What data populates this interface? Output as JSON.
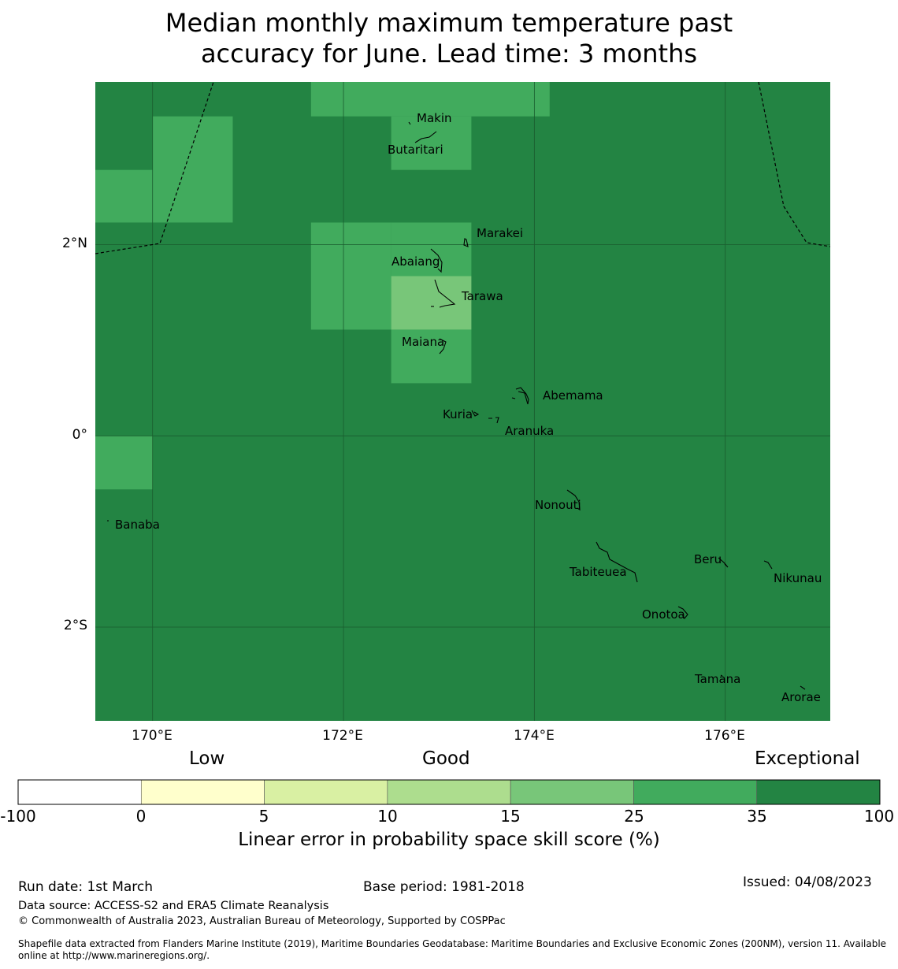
{
  "title_line1": "Median monthly maximum temperature past",
  "title_line2": "accuracy for June. Lead time: 3 months",
  "map": {
    "lon_range": [
      169.4,
      177.1
    ],
    "lat_range": [
      -2.98,
      3.7
    ],
    "background_color": "#238443",
    "grid_cells": [
      {
        "lon": [
          171.66,
          174.16
        ],
        "lat": [
          3.34,
          3.7
        ],
        "color": "#41ab5d",
        "category": "25-35"
      },
      {
        "lon": [
          170.0,
          170.84
        ],
        "lat": [
          2.23,
          3.34
        ],
        "color": "#41ab5d",
        "category": "25-35"
      },
      {
        "lon": [
          169.4,
          170.0
        ],
        "lat": [
          2.23,
          2.78
        ],
        "color": "#41ab5d",
        "category": "25-35"
      },
      {
        "lon": [
          172.5,
          173.34
        ],
        "lat": [
          2.78,
          3.34
        ],
        "color": "#41ab5d",
        "category": "25-35"
      },
      {
        "lon": [
          171.66,
          172.5
        ],
        "lat": [
          1.11,
          2.23
        ],
        "color": "#41ab5d",
        "category": "25-35"
      },
      {
        "lon": [
          172.5,
          173.34
        ],
        "lat": [
          1.67,
          2.23
        ],
        "color": "#41ab5d",
        "category": "25-35"
      },
      {
        "lon": [
          172.5,
          173.34
        ],
        "lat": [
          1.11,
          1.67
        ],
        "color": "#78c679",
        "category": "15-25"
      },
      {
        "lon": [
          172.5,
          173.34
        ],
        "lat": [
          0.55,
          1.11
        ],
        "color": "#41ab5d",
        "category": "25-35"
      },
      {
        "lon": [
          169.4,
          170.0
        ],
        "lat": [
          -0.56,
          0.0
        ],
        "color": "#41ab5d",
        "category": "25-35"
      }
    ],
    "lat_ticks": [
      {
        "lat": 2,
        "label": "2°N"
      },
      {
        "lat": 0,
        "label": "0°"
      },
      {
        "lat": -2,
        "label": "2°S"
      }
    ],
    "lon_ticks": [
      {
        "lon": 170,
        "label": "170°E"
      },
      {
        "lon": 172,
        "label": "172°E"
      },
      {
        "lon": 174,
        "label": "174°E"
      },
      {
        "lon": 176,
        "label": "176°E"
      }
    ],
    "islands": [
      {
        "name": "Makin",
        "lon": 172.98,
        "lat": 3.33
      },
      {
        "name": "Butaritari",
        "lon": 172.8,
        "lat": 3.07
      },
      {
        "name": "Marakei",
        "lon": 173.3,
        "lat": 2.01
      },
      {
        "name": "Abaiang",
        "lon": 173.0,
        "lat": 1.85
      },
      {
        "name": "Tarawa",
        "lon": 173.06,
        "lat": 1.42
      },
      {
        "name": "Maiana",
        "lon": 173.02,
        "lat": 0.93
      },
      {
        "name": "Abemama",
        "lon": 173.87,
        "lat": 0.4
      },
      {
        "name": "Kuria",
        "lon": 173.41,
        "lat": 0.23
      },
      {
        "name": "Aranuka",
        "lon": 173.63,
        "lat": 0.17
      },
      {
        "name": "Nonouti",
        "lon": 174.42,
        "lat": -0.63
      },
      {
        "name": "Banaba",
        "lon": 169.53,
        "lat": -0.87
      },
      {
        "name": "Tabiteuea",
        "lon": 174.85,
        "lat": -1.38
      },
      {
        "name": "Beru",
        "lon": 176.0,
        "lat": -1.33
      },
      {
        "name": "Nikunau",
        "lon": 176.45,
        "lat": -1.37
      },
      {
        "name": "Onotoa",
        "lon": 175.58,
        "lat": -1.82
      },
      {
        "name": "Tamana",
        "lon": 175.98,
        "lat": -2.5
      },
      {
        "name": "Arorae",
        "lon": 176.82,
        "lat": -2.65
      }
    ]
  },
  "colorbar": {
    "category_labels": [
      "Low",
      "Good",
      "Exceptional"
    ],
    "bins": [
      {
        "from": -100,
        "to": 0,
        "color": "#ffffff"
      },
      {
        "from": 0,
        "to": 5,
        "color": "#ffffcc"
      },
      {
        "from": 5,
        "to": 10,
        "color": "#d9f0a3"
      },
      {
        "from": 10,
        "to": 15,
        "color": "#addd8e"
      },
      {
        "from": 15,
        "to": 25,
        "color": "#78c679"
      },
      {
        "from": 25,
        "to": 35,
        "color": "#41ab5d"
      },
      {
        "from": 35,
        "to": 100,
        "color": "#238443"
      }
    ],
    "tick_labels": [
      "-100",
      "0",
      "5",
      "10",
      "15",
      "25",
      "35",
      "100"
    ],
    "title": "Linear error in probability space skill score (%)"
  },
  "footer": {
    "run_date": "Run date: 1st March",
    "base_period": "Base period: 1981-2018",
    "issued": "Issued: 04/08/2023",
    "data_source": "Data source: ACCESS-S2 and ERA5 Climate Reanalysis",
    "copyright": "© Commonwealth of Australia 2023, Australian Bureau of Meteorology, Supported by COSPPac",
    "shapefile_line1": "Shapefile data extracted from Flanders Marine Institute (2019), Maritime Boundaries Geodatabase: Maritime Boundaries and Exclusive Economic Zones (200NM), version 11. Available",
    "shapefile_line2": "online at http://www.marineregions.org/."
  }
}
